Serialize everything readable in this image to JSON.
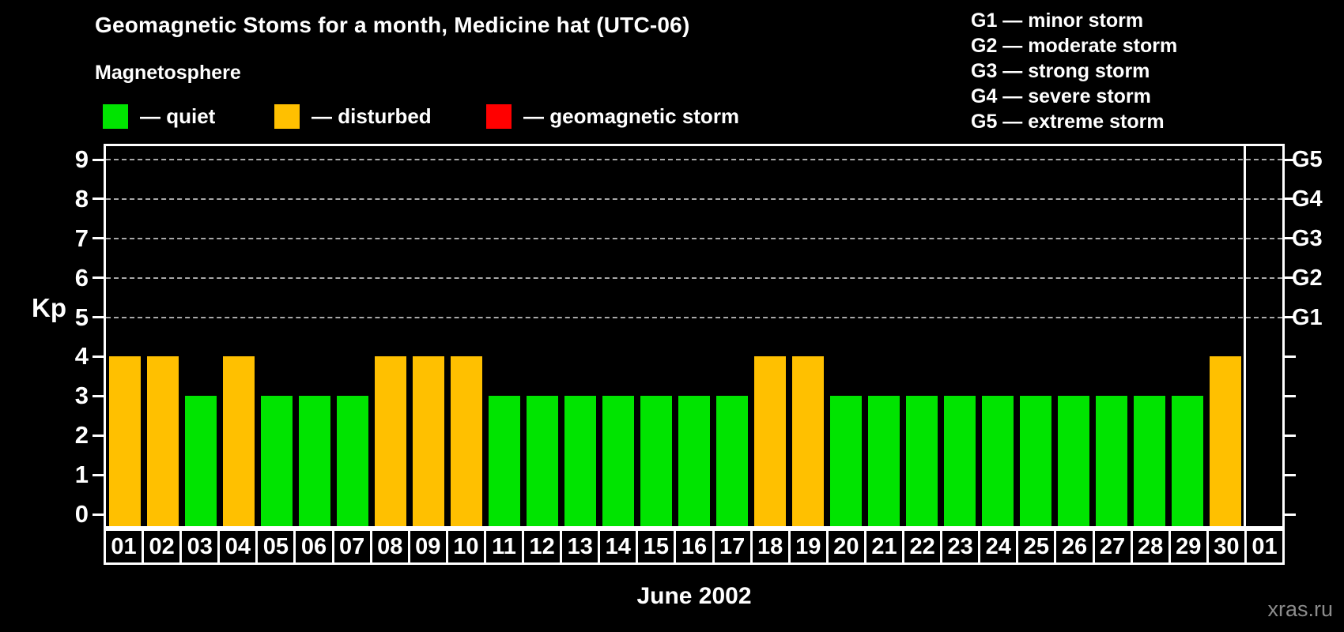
{
  "title": "Geomagnetic Stoms for a month, Medicine hat (UTC-06)",
  "subtitle": "Magnetosphere",
  "legend": {
    "items": [
      {
        "key": "quiet",
        "label": "— quiet",
        "color": "#00e400",
        "x": 130
      },
      {
        "key": "disturbed",
        "label": "— disturbed",
        "color": "#ffc000",
        "x": 347
      },
      {
        "key": "storm",
        "label": "— geomagnetic storm",
        "color": "#ff0000",
        "x": 615
      }
    ]
  },
  "g_legend": [
    "G1 — minor storm",
    "G2 — moderate storm",
    "G3 — strong storm",
    "G4 — severe storm",
    "G5 — extreme storm"
  ],
  "watermark": "xras.ru",
  "chart_data": {
    "type": "bar",
    "title": "Geomagnetic Stoms for a month, Medicine hat (UTC-06)",
    "xlabel": "June 2002",
    "ylabel": "Kp",
    "ylim": [
      0,
      9.75
    ],
    "yticks": [
      0,
      1,
      2,
      3,
      4,
      5,
      6,
      7,
      8,
      9
    ],
    "gridlines_at": [
      5,
      6,
      7,
      8,
      9
    ],
    "right_axis": [
      {
        "kp": 5,
        "label": "G1"
      },
      {
        "kp": 6,
        "label": "G2"
      },
      {
        "kp": 7,
        "label": "G3"
      },
      {
        "kp": 8,
        "label": "G4"
      },
      {
        "kp": 9,
        "label": "G5"
      }
    ],
    "legend_position": "top",
    "grid": "horizontal-dashed",
    "categories": [
      "01",
      "02",
      "03",
      "04",
      "05",
      "06",
      "07",
      "08",
      "09",
      "10",
      "11",
      "12",
      "13",
      "14",
      "15",
      "16",
      "17",
      "18",
      "19",
      "20",
      "21",
      "22",
      "23",
      "24",
      "25",
      "26",
      "27",
      "28",
      "29",
      "30",
      "01"
    ],
    "values": [
      4,
      4,
      3,
      4,
      3,
      3,
      3,
      4,
      4,
      4,
      3,
      3,
      3,
      3,
      3,
      3,
      3,
      4,
      4,
      3,
      3,
      3,
      3,
      3,
      3,
      3,
      3,
      3,
      3,
      4,
      null
    ],
    "statuses": [
      "disturbed",
      "disturbed",
      "quiet",
      "disturbed",
      "quiet",
      "quiet",
      "quiet",
      "disturbed",
      "disturbed",
      "disturbed",
      "quiet",
      "quiet",
      "quiet",
      "quiet",
      "quiet",
      "quiet",
      "quiet",
      "disturbed",
      "disturbed",
      "quiet",
      "quiet",
      "quiet",
      "quiet",
      "quiet",
      "quiet",
      "quiet",
      "quiet",
      "quiet",
      "quiet",
      "disturbed",
      null
    ],
    "colors": {
      "quiet": "#00e400",
      "disturbed": "#ffc000",
      "storm": "#ff0000"
    },
    "month_separator_after_index": 29
  }
}
